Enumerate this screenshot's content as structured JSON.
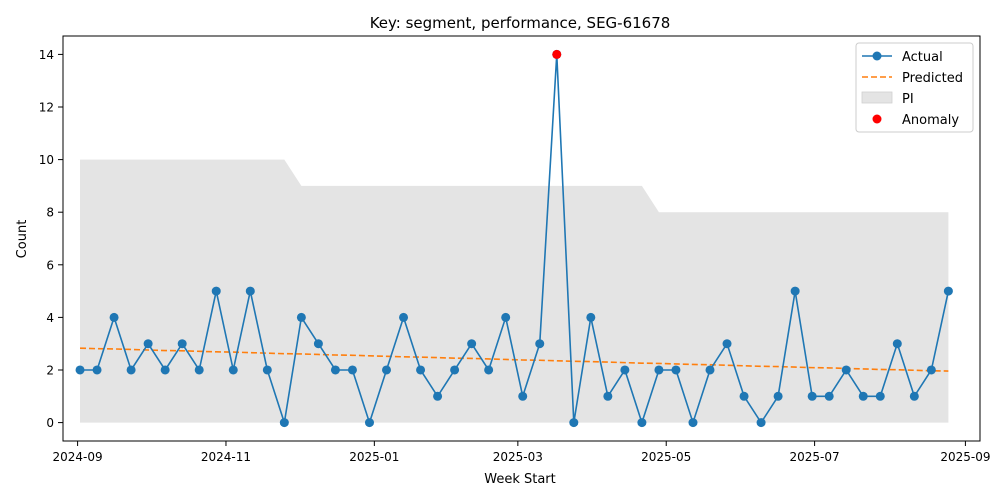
{
  "chart_data": {
    "type": "line",
    "title": "Key: segment, performance, SEG-61678",
    "xlabel": "Week Start",
    "ylabel": "Count",
    "ylim": [
      -0.7,
      14.7
    ],
    "xlim": [
      "2024-08-26",
      "2025-09-07"
    ],
    "x_ticks": [
      "2024-09",
      "2024-11",
      "2025-01",
      "2025-03",
      "2025-05",
      "2025-07",
      "2025-09"
    ],
    "x_tick_dates": [
      "2024-09-01",
      "2024-11-01",
      "2025-01-01",
      "2025-03-01",
      "2025-05-01",
      "2025-07-01",
      "2025-09-01"
    ],
    "y_ticks": [
      0,
      2,
      4,
      6,
      8,
      10,
      12,
      14
    ],
    "legend_position": "top-right",
    "grid": false,
    "x": [
      "2024-09-02",
      "2024-09-09",
      "2024-09-16",
      "2024-09-23",
      "2024-09-30",
      "2024-10-07",
      "2024-10-14",
      "2024-10-21",
      "2024-10-28",
      "2024-11-04",
      "2024-11-11",
      "2024-11-18",
      "2024-11-25",
      "2024-12-02",
      "2024-12-09",
      "2024-12-16",
      "2024-12-23",
      "2024-12-30",
      "2025-01-06",
      "2025-01-13",
      "2025-01-20",
      "2025-01-27",
      "2025-02-03",
      "2025-02-10",
      "2025-02-17",
      "2025-02-24",
      "2025-03-03",
      "2025-03-10",
      "2025-03-17",
      "2025-03-24",
      "2025-03-31",
      "2025-04-07",
      "2025-04-14",
      "2025-04-21",
      "2025-04-28",
      "2025-05-05",
      "2025-05-12",
      "2025-05-19",
      "2025-05-26",
      "2025-06-02",
      "2025-06-09",
      "2025-06-16",
      "2025-06-23",
      "2025-06-30",
      "2025-07-07",
      "2025-07-14",
      "2025-07-21",
      "2025-07-28",
      "2025-08-04",
      "2025-08-11",
      "2025-08-18",
      "2025-08-25"
    ],
    "series": [
      {
        "name": "Actual",
        "color": "#1f77b4",
        "style": "line-with-markers",
        "values": [
          2,
          2,
          4,
          2,
          3,
          2,
          3,
          2,
          5,
          2,
          5,
          2,
          0,
          4,
          3,
          2,
          2,
          0,
          2,
          4,
          2,
          1,
          2,
          3,
          2,
          4,
          1,
          3,
          14,
          0,
          4,
          1,
          2,
          0,
          2,
          2,
          0,
          2,
          3,
          1,
          0,
          1,
          5,
          1,
          1,
          2,
          1,
          1,
          3,
          1,
          2,
          5
        ]
      },
      {
        "name": "Predicted",
        "color": "#ff7f0e",
        "style": "dashed",
        "values": [
          2.83,
          2.81,
          2.8,
          2.78,
          2.76,
          2.74,
          2.73,
          2.71,
          2.69,
          2.68,
          2.66,
          2.64,
          2.62,
          2.61,
          2.59,
          2.57,
          2.56,
          2.54,
          2.52,
          2.5,
          2.49,
          2.47,
          2.45,
          2.44,
          2.42,
          2.4,
          2.38,
          2.37,
          2.35,
          2.33,
          2.32,
          2.3,
          2.28,
          2.26,
          2.25,
          2.23,
          2.21,
          2.2,
          2.18,
          2.16,
          2.14,
          2.13,
          2.11,
          2.09,
          2.08,
          2.06,
          2.04,
          2.02,
          2.01,
          1.99,
          1.97,
          1.96
        ]
      },
      {
        "name": "PI",
        "color": "#e4e4e4",
        "style": "band",
        "lower": [
          0,
          0,
          0,
          0,
          0,
          0,
          0,
          0,
          0,
          0,
          0,
          0,
          0,
          0,
          0,
          0,
          0,
          0,
          0,
          0,
          0,
          0,
          0,
          0,
          0,
          0,
          0,
          0,
          0,
          0,
          0,
          0,
          0,
          0,
          0,
          0,
          0,
          0,
          0,
          0,
          0,
          0,
          0,
          0,
          0,
          0,
          0,
          0,
          0,
          0,
          0,
          0
        ],
        "upper": [
          10,
          10,
          10,
          10,
          10,
          10,
          10,
          10,
          10,
          10,
          10,
          10,
          10,
          9,
          9,
          9,
          9,
          9,
          9,
          9,
          9,
          9,
          9,
          9,
          9,
          9,
          9,
          9,
          9,
          9,
          9,
          9,
          9,
          9,
          8,
          8,
          8,
          8,
          8,
          8,
          8,
          8,
          8,
          8,
          8,
          8,
          8,
          8,
          8,
          8,
          8,
          8
        ]
      },
      {
        "name": "Anomaly",
        "color": "#ff0000",
        "style": "scatter",
        "points": [
          {
            "x": "2025-03-17",
            "y": 14
          }
        ]
      }
    ]
  }
}
